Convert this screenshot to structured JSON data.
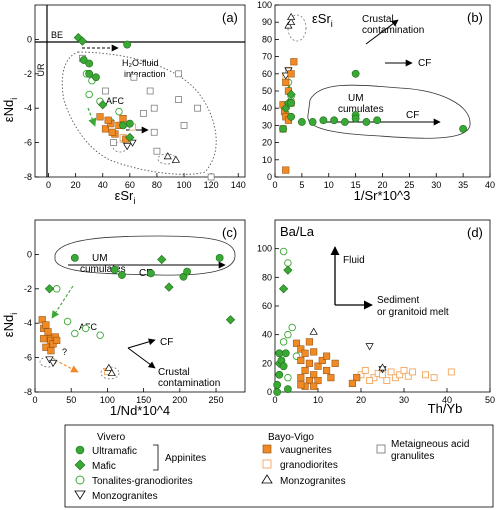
{
  "chart_data": [
    {
      "id": "a",
      "type": "scatter",
      "panel_label": "(a)",
      "xlabel": "εSr",
      "xlabel_sub": "i",
      "ylabel": "εNd",
      "ylabel_sub": "i",
      "xlim": [
        -10,
        145
      ],
      "ylim": [
        -8,
        2
      ],
      "xticks": [
        0,
        20,
        40,
        60,
        80,
        100,
        120,
        140
      ],
      "yticks": [
        0,
        -2,
        -4,
        -6,
        -8
      ],
      "annotations": [
        "BE",
        "UR",
        "H₂O-fluid",
        "interaction",
        "AFC"
      ],
      "series": [
        {
          "name": "Ultramafic",
          "points": [
            [
              26,
              -1.2
            ],
            [
              30,
              -1.4
            ],
            [
              30,
              -2.0
            ],
            [
              35,
              -2.2
            ],
            [
              58,
              -0.3
            ],
            [
              55,
              -5.0
            ],
            [
              60,
              -4.9
            ]
          ]
        },
        {
          "name": "Mafic",
          "points": [
            [
              22,
              0.1
            ],
            [
              25,
              -0.1
            ],
            [
              40,
              -3.8
            ],
            [
              60,
              -5.7
            ]
          ]
        },
        {
          "name": "Tonalites-granodiorites",
          "points": [
            [
              28,
              -2.0
            ],
            [
              30,
              -3.2
            ],
            [
              32,
              -2.4
            ],
            [
              38,
              -3.6
            ],
            [
              46,
              -4.8
            ],
            [
              52,
              -4.2
            ]
          ]
        },
        {
          "name": "Monzogranites",
          "points": [
            [
              58,
              -6.2
            ],
            [
              62,
              -6.0
            ]
          ]
        },
        {
          "name": "vaugnerites",
          "points": [
            [
              38,
              -4.5
            ],
            [
              42,
              -5.2
            ],
            [
              46,
              -4.9
            ],
            [
              49,
              -5.5
            ],
            [
              52,
              -5.0
            ],
            [
              55,
              -4.6
            ],
            [
              57,
              -5.8
            ],
            [
              47,
              -5.4
            ],
            [
              44,
              -4.7
            ]
          ]
        },
        {
          "name": "granodiorites",
          "points": [
            [
              62,
              -5.1
            ],
            [
              55,
              -5.7
            ]
          ]
        },
        {
          "name": "Monzogranites (Bayo-Vigo)",
          "points": [
            [
              88,
              -6.8
            ],
            [
              94,
              -7.0
            ]
          ]
        },
        {
          "name": "Metaigneous acid granulites",
          "points": [
            [
              25,
              -1.1
            ],
            [
              42,
              -3.0
            ],
            [
              63,
              -2.2
            ],
            [
              70,
              -4.3
            ],
            [
              75,
              -3.0
            ],
            [
              78,
              -4.0
            ],
            [
              78,
              -5.4
            ],
            [
              80,
              -6.5
            ],
            [
              96,
              -2.0
            ],
            [
              96,
              -3.5
            ],
            [
              100,
              -5.0
            ],
            [
              110,
              -4.0
            ],
            [
              120,
              -8.0
            ],
            [
              48,
              -6.0
            ]
          ]
        }
      ]
    },
    {
      "id": "b",
      "type": "scatter",
      "panel_label": "(b)",
      "xlabel": "1/Sr*10^3",
      "ylabel": "",
      "inner_label": "εSr",
      "inner_label_sub": "i",
      "xlim": [
        0,
        40
      ],
      "ylim": [
        0,
        100
      ],
      "xticks": [
        0,
        5,
        10,
        15,
        20,
        25,
        30,
        35,
        40
      ],
      "yticks": [
        0,
        10,
        20,
        30,
        40,
        50,
        60,
        70,
        80,
        90,
        100
      ],
      "annotations": [
        "Crustal",
        "contamination",
        "CF",
        "UM",
        "cumulates",
        "CF"
      ],
      "series": [
        {
          "name": "Ultramafic",
          "points": [
            [
              1.5,
              28
            ],
            [
              3,
              35
            ],
            [
              3,
              43
            ],
            [
              5,
              32
            ],
            [
              7,
              32
            ],
            [
              9,
              33
            ],
            [
              11,
              33
            ],
            [
              13,
              32
            ],
            [
              15,
              36
            ],
            [
              15,
              34
            ],
            [
              15,
              60
            ],
            [
              17,
              32
            ],
            [
              19,
              33
            ],
            [
              35,
              28
            ]
          ]
        },
        {
          "name": "Mafic",
          "points": [
            [
              2,
              40
            ],
            [
              2.5,
              43
            ],
            [
              3,
              48
            ]
          ]
        },
        {
          "name": "Tonalites-granodiorites",
          "points": [
            [
              2,
              37
            ],
            [
              3,
              47
            ],
            [
              2.5,
              55
            ]
          ]
        },
        {
          "name": "Monzogranites",
          "points": [
            [
              2,
              59
            ],
            [
              2.5,
              62
            ]
          ]
        },
        {
          "name": "vaugnerites",
          "points": [
            [
              1.5,
              42
            ],
            [
              1.8,
              38
            ],
            [
              2,
              35
            ],
            [
              2,
              55
            ],
            [
              2.5,
              33
            ],
            [
              1.5,
              28
            ],
            [
              2.5,
              50
            ],
            [
              2,
              4
            ],
            [
              3,
              43
            ],
            [
              3,
              60
            ],
            [
              3.5,
              67
            ]
          ]
        },
        {
          "name": "granodiorites",
          "points": [
            [
              2,
              58
            ],
            [
              2.5,
              62
            ]
          ]
        },
        {
          "name": "Monzogranites (Bayo-Vigo)",
          "points": [
            [
              2.5,
              88
            ],
            [
              3,
              90
            ],
            [
              3,
              93
            ]
          ]
        }
      ]
    },
    {
      "id": "c",
      "type": "scatter",
      "panel_label": "(c)",
      "xlabel": "1/Nd*10^4",
      "ylabel": "εNd",
      "ylabel_sub": "i",
      "xlim": [
        0,
        290
      ],
      "ylim": [
        -8,
        2
      ],
      "xticks": [
        0,
        50,
        100,
        150,
        200,
        250
      ],
      "yticks": [
        0,
        -2,
        -4,
        -6,
        -8
      ],
      "annotations": [
        "UM",
        "cumulates",
        "CF",
        "AFC",
        "?",
        "CF",
        "Crustal",
        "contamination"
      ],
      "series": [
        {
          "name": "Ultramafic",
          "points": [
            [
              55,
              -0.2
            ],
            [
              110,
              -0.9
            ],
            [
              120,
              -1.2
            ],
            [
              160,
              -1.1
            ],
            [
              205,
              -1.3
            ],
            [
              210,
              -1.0
            ],
            [
              255,
              -0.2
            ]
          ]
        },
        {
          "name": "Mafic",
          "points": [
            [
              20,
              -2.0
            ],
            [
              175,
              -0.3
            ],
            [
              185,
              -1.9
            ],
            [
              270,
              -3.8
            ]
          ]
        },
        {
          "name": "Tonalites-granodiorites",
          "points": [
            [
              30,
              -2.0
            ],
            [
              45,
              -3.9
            ],
            [
              55,
              -4.6
            ],
            [
              70,
              -4.3
            ],
            [
              90,
              -4.7
            ]
          ]
        },
        {
          "name": "Monzogranites",
          "points": [
            [
              20,
              -6.1
            ],
            [
              25,
              -6.3
            ]
          ]
        },
        {
          "name": "vaugnerites",
          "points": [
            [
              10,
              -3.8
            ],
            [
              12,
              -4.3
            ],
            [
              15,
              -4.1
            ],
            [
              18,
              -4.5
            ],
            [
              20,
              -4.9
            ],
            [
              22,
              -5.0
            ],
            [
              25,
              -5.2
            ],
            [
              28,
              -4.8
            ],
            [
              30,
              -5.0
            ],
            [
              15,
              -5.4
            ],
            [
              12,
              -4.9
            ],
            [
              22,
              -5.6
            ]
          ]
        },
        {
          "name": "granodiorites",
          "points": [
            [
              100,
              -6.8
            ]
          ]
        },
        {
          "name": "Monzogranites (Bayo-Vigo)",
          "points": [
            [
              102,
              -6.6
            ],
            [
              106,
              -6.9
            ]
          ]
        }
      ]
    },
    {
      "id": "d",
      "type": "scatter",
      "panel_label": "(d)",
      "xlabel": "Th/Yb",
      "ylabel": "",
      "inner_label": "Ba/La",
      "xlim": [
        0,
        50
      ],
      "ylim": [
        0,
        120
      ],
      "xticks": [
        0,
        10,
        20,
        30,
        40,
        50
      ],
      "yticks": [
        0,
        20,
        40,
        60,
        80,
        100
      ],
      "annotations": [
        "Fluid",
        "Sediment",
        "or granitoid melt"
      ],
      "series": [
        {
          "name": "Ultramafic",
          "points": [
            [
              0.5,
              5
            ],
            [
              1,
              12
            ],
            [
              1,
              27
            ],
            [
              1.5,
              22
            ],
            [
              2,
              18
            ],
            [
              2.5,
              27
            ],
            [
              3,
              2
            ],
            [
              0.5,
              0
            ]
          ]
        },
        {
          "name": "Mafic",
          "points": [
            [
              2,
              72
            ],
            [
              3,
              85
            ],
            [
              1,
              20
            ]
          ]
        },
        {
          "name": "Tonalites-granodiorites",
          "points": [
            [
              2,
              98
            ],
            [
              3,
              90
            ],
            [
              2,
              35
            ],
            [
              3,
              40
            ],
            [
              4,
              45
            ],
            [
              5,
              25
            ],
            [
              3,
              10
            ]
          ]
        },
        {
          "name": "Monzogranites",
          "points": [
            [
              22,
              32
            ],
            [
              25,
              16
            ]
          ]
        },
        {
          "name": "vaugnerites",
          "points": [
            [
              5,
              34
            ],
            [
              6,
              30
            ],
            [
              6,
              22
            ],
            [
              7,
              27
            ],
            [
              7,
              15
            ],
            [
              8,
              35
            ],
            [
              8,
              20
            ],
            [
              9,
              12
            ],
            [
              9,
              28
            ],
            [
              10,
              18
            ],
            [
              11,
              22
            ],
            [
              12,
              15
            ],
            [
              13,
              10
            ],
            [
              8,
              8
            ],
            [
              7,
              4
            ],
            [
              6,
              10
            ],
            [
              14,
              20
            ],
            [
              10,
              8
            ],
            [
              12,
              25
            ],
            [
              6,
              5
            ],
            [
              9,
              4
            ],
            [
              19,
              10
            ],
            [
              18,
              6
            ]
          ]
        },
        {
          "name": "granodiorites",
          "points": [
            [
              20,
              12
            ],
            [
              21,
              15
            ],
            [
              23,
              10
            ],
            [
              24,
              13
            ],
            [
              25,
              12
            ],
            [
              26,
              8
            ],
            [
              27,
              14
            ],
            [
              28,
              10
            ],
            [
              29,
              12
            ],
            [
              30,
              15
            ],
            [
              31,
              11
            ],
            [
              32,
              14
            ],
            [
              35,
              12
            ],
            [
              37,
              10
            ],
            [
              41,
              14
            ],
            [
              22,
              8
            ]
          ]
        },
        {
          "name": "Monzogranites (Bayo-Vigo)",
          "points": [
            [
              9,
              42
            ],
            [
              25,
              17
            ]
          ]
        }
      ]
    }
  ],
  "legend": {
    "vivero_title": "Vivero",
    "ultramafic": "Ultramafic",
    "mafic": "Mafic",
    "appinites": "Appinites",
    "tonalites": "Tonalites-granodiorites",
    "monzogranites_v": "Monzogranites",
    "bayo_title": "Bayo-Vigo",
    "vaugnerites": "vaugnerites",
    "granodiorites": "granodiorites",
    "monzogranites_b": "Monzogranites",
    "metaigneous_1": "Metaigneous acid",
    "metaigneous_2": "granulites"
  },
  "colors": {
    "green": "#3aa835",
    "orange": "#f08a24",
    "orange_light": "#f4a55a",
    "grey": "#7f7f7f",
    "black": "#000000"
  }
}
